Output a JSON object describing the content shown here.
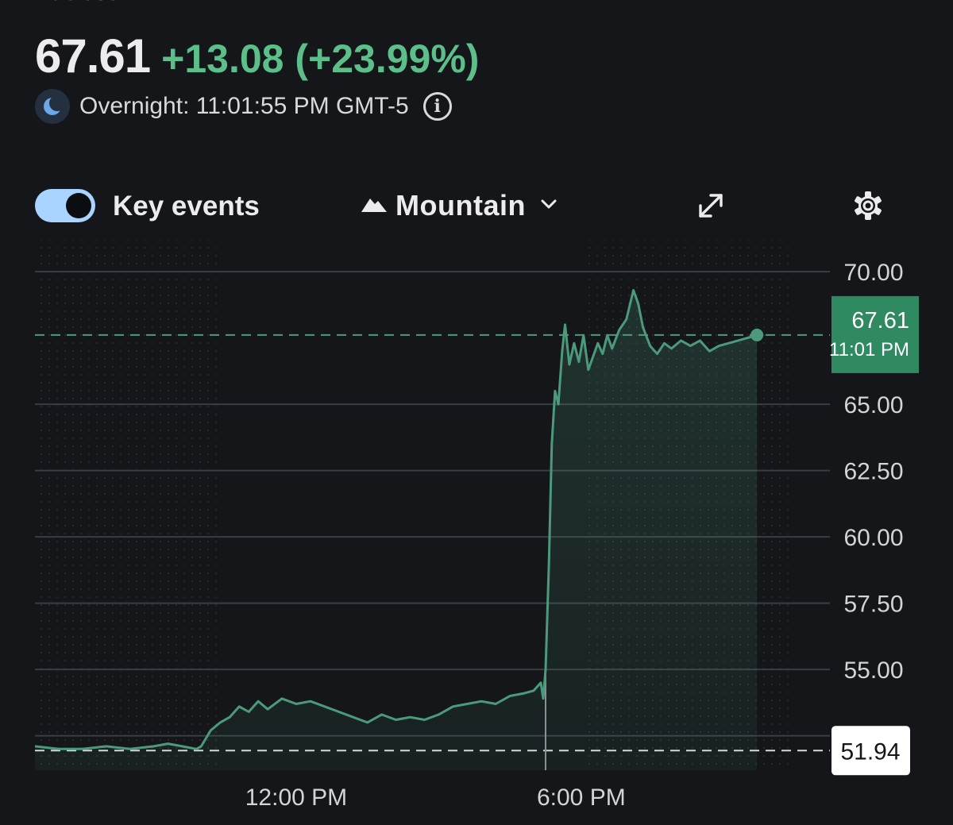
{
  "header": {
    "top_cut_text": "At close: ",
    "price": "67.61",
    "change": "+13.08 (+23.99%)",
    "session_text": "Overnight: 11:01:55 PM GMT-5"
  },
  "icons": {
    "session": "moon-icon",
    "info": "info-icon",
    "chart_type": "mountain-icon",
    "dropdown": "chevron-down-icon",
    "expand": "expand-icon",
    "settings": "gear-icon"
  },
  "controls": {
    "key_events_label": "Key events",
    "key_events_on": true,
    "chart_type_label": "Mountain"
  },
  "colors": {
    "background": "#14161a",
    "positive": "#5cbf8a",
    "line": "#4c9a7c",
    "toggle": "#a8d4ff",
    "price_badge": "#2f8a62"
  },
  "chart_data": {
    "type": "area",
    "ylim": [
      51.2,
      71.2
    ],
    "yticks": [
      "70.00",
      "65.00",
      "62.50",
      "60.00",
      "57.50",
      "55.00"
    ],
    "ytick_values": [
      70.0,
      65.0,
      62.5,
      60.0,
      57.5,
      55.0
    ],
    "xlim": [
      6.5,
      22.5
    ],
    "xticks": [
      "12:00 PM",
      "6:00 PM"
    ],
    "xtick_values": [
      12.0,
      18.0
    ],
    "previous_close": "51.94",
    "previous_close_value": 51.94,
    "current_price": "67.61",
    "current_price_value": 67.61,
    "current_time_label": "11:01 PM",
    "current_time_value": 23.0,
    "event_time_value": 17.25,
    "points": [
      [
        6.5,
        52.1
      ],
      [
        7.0,
        52.0
      ],
      [
        7.5,
        52.0
      ],
      [
        8.0,
        52.1
      ],
      [
        8.5,
        52.0
      ],
      [
        9.0,
        52.1
      ],
      [
        9.3,
        52.2
      ],
      [
        9.6,
        52.1
      ],
      [
        9.9,
        52.0
      ],
      [
        10.0,
        52.1
      ],
      [
        10.2,
        52.7
      ],
      [
        10.4,
        53.0
      ],
      [
        10.6,
        53.2
      ],
      [
        10.8,
        53.6
      ],
      [
        11.0,
        53.4
      ],
      [
        11.2,
        53.8
      ],
      [
        11.4,
        53.5
      ],
      [
        11.7,
        53.9
      ],
      [
        12.0,
        53.7
      ],
      [
        12.3,
        53.8
      ],
      [
        12.6,
        53.6
      ],
      [
        12.9,
        53.4
      ],
      [
        13.2,
        53.2
      ],
      [
        13.5,
        53.0
      ],
      [
        13.8,
        53.3
      ],
      [
        14.1,
        53.1
      ],
      [
        14.4,
        53.2
      ],
      [
        14.7,
        53.1
      ],
      [
        15.0,
        53.3
      ],
      [
        15.3,
        53.6
      ],
      [
        15.6,
        53.7
      ],
      [
        15.9,
        53.8
      ],
      [
        16.2,
        53.7
      ],
      [
        16.5,
        54.0
      ],
      [
        16.8,
        54.1
      ],
      [
        17.0,
        54.2
      ],
      [
        17.15,
        54.5
      ],
      [
        17.2,
        53.9
      ],
      [
        17.25,
        55.0
      ],
      [
        17.32,
        59.0
      ],
      [
        17.38,
        63.5
      ],
      [
        17.45,
        65.5
      ],
      [
        17.52,
        65.0
      ],
      [
        17.6,
        67.0
      ],
      [
        17.66,
        68.0
      ],
      [
        17.75,
        66.5
      ],
      [
        17.85,
        67.3
      ],
      [
        17.95,
        66.6
      ],
      [
        18.05,
        67.6
      ],
      [
        18.15,
        66.3
      ],
      [
        18.25,
        66.8
      ],
      [
        18.35,
        67.3
      ],
      [
        18.45,
        66.9
      ],
      [
        18.55,
        67.6
      ],
      [
        18.65,
        67.1
      ],
      [
        18.8,
        67.8
      ],
      [
        18.95,
        68.2
      ],
      [
        19.1,
        69.3
      ],
      [
        19.2,
        68.8
      ],
      [
        19.3,
        67.9
      ],
      [
        19.45,
        67.2
      ],
      [
        19.6,
        66.9
      ],
      [
        19.75,
        67.3
      ],
      [
        19.9,
        67.1
      ],
      [
        20.1,
        67.4
      ],
      [
        20.3,
        67.2
      ],
      [
        20.5,
        67.4
      ],
      [
        20.7,
        67.0
      ],
      [
        20.9,
        67.2
      ],
      [
        21.1,
        67.3
      ],
      [
        21.3,
        67.4
      ],
      [
        21.5,
        67.5
      ],
      [
        21.7,
        67.61
      ]
    ]
  }
}
